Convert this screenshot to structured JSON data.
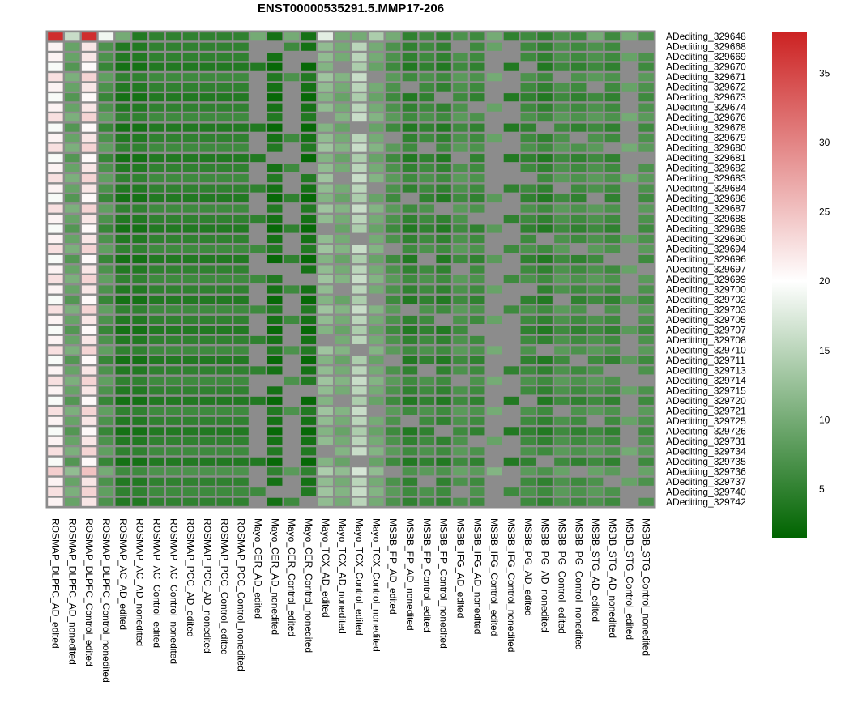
{
  "chart_data": {
    "type": "heatmap",
    "title": "ENST00000535291.5.MMP17-206",
    "columns": [
      "ROSMAP_DLPFC_AD_edited",
      "ROSMAP_DLPFC_AD_nonedited",
      "ROSMAP_DLPFC_Control_edited",
      "ROSMAP_DLPFC_Control_nonedited",
      "ROSMAP_AC_AD_edited",
      "ROSMAP_AC_AD_nonedited",
      "ROSMAP_AC_Control_edited",
      "ROSMAP_AC_Control_nonedited",
      "ROSMAP_PCC_AD_edited",
      "ROSMAP_PCC_AD_nonedited",
      "ROSMAP_PCC_Control_edited",
      "ROSMAP_PCC_Control_nonedited",
      "Mayo_CER_AD_edited",
      "Mayo_CER_AD_nonedited",
      "Mayo_CER_Control_edited",
      "Mayo_CER_Control_nonedited",
      "Mayo_TCX_AD_edited",
      "Mayo_TCX_AD_nonedited",
      "Mayo_TCX_Control_edited",
      "Mayo_TCX_Control_nonedited",
      "MSBB_FP_AD_edited",
      "MSBB_FP_AD_nonedited",
      "MSBB_FP_Control_edited",
      "MSBB_FP_Control_nonedited",
      "MSBB_IFG_AD_edited",
      "MSBB_IFG_AD_nonedited",
      "MSBB_IFG_Control_edited",
      "MSBB_IFG_Control_nonedited",
      "MSBB_PG_AD_edited",
      "MSBB_PG_AD_nonedited",
      "MSBB_PG_Control_edited",
      "MSBB_PG_Control_nonedited",
      "MSBB_STG_AD_edited",
      "MSBB_STG_AD_nonedited",
      "MSBB_STG_Control_edited",
      "MSBB_STG_Control_nonedited"
    ],
    "rows": [
      "ADediting_329648",
      "ADediting_329668",
      "ADediting_329669",
      "ADediting_329670",
      "ADediting_329671",
      "ADediting_329672",
      "ADediting_329673",
      "ADediting_329674",
      "ADediting_329676",
      "ADediting_329678",
      "ADediting_329679",
      "ADediting_329680",
      "ADediting_329681",
      "ADediting_329682",
      "ADediting_329683",
      "ADediting_329684",
      "ADediting_329686",
      "ADediting_329687",
      "ADediting_329688",
      "ADediting_329689",
      "ADediting_329690",
      "ADediting_329694",
      "ADediting_329696",
      "ADediting_329697",
      "ADediting_329699",
      "ADediting_329700",
      "ADediting_329702",
      "ADediting_329703",
      "ADediting_329705",
      "ADediting_329707",
      "ADediting_329708",
      "ADediting_329710",
      "ADediting_329711",
      "ADediting_329713",
      "ADediting_329714",
      "ADediting_329715",
      "ADediting_329720",
      "ADediting_329721",
      "ADediting_329725",
      "ADediting_329726",
      "ADediting_329731",
      "ADediting_329734",
      "ADediting_329735",
      "ADediting_329736",
      "ADediting_329737",
      "ADediting_329740",
      "ADediting_329742"
    ],
    "column_base_values": [
      21,
      9,
      22,
      7,
      4,
      4,
      5,
      5,
      5,
      5,
      5,
      5,
      5,
      3,
      6,
      3,
      12,
      10,
      15,
      10,
      7,
      5,
      6,
      5,
      7,
      6,
      9,
      5,
      6,
      5,
      7,
      6,
      7,
      6,
      9,
      7
    ],
    "row_offsets": [
      3,
      0,
      0,
      -1,
      1,
      0,
      -1,
      0,
      1,
      -1,
      0,
      1,
      -1,
      0,
      1,
      0,
      -1,
      1,
      0,
      -1,
      0,
      1,
      -1,
      0,
      1,
      0,
      -1,
      1,
      0,
      -1,
      0,
      1,
      -1,
      0,
      1,
      0,
      -1,
      1,
      0,
      -1,
      0,
      1,
      -1,
      2,
      0,
      1,
      0
    ],
    "first_row_values": [
      37,
      16,
      37,
      19,
      10,
      4,
      5,
      5,
      5,
      5,
      5,
      5,
      10,
      3,
      10,
      3,
      18,
      10,
      10,
      14,
      10,
      5,
      6,
      5,
      7,
      6,
      10,
      5,
      6,
      5,
      7,
      6,
      10,
      6,
      10,
      7
    ],
    "missing_columns": [
      12,
      14,
      26,
      27,
      34
    ],
    "color_scale": {
      "min": 1.5,
      "mid": 20,
      "max": 38,
      "low": "#006400",
      "mid_color": "#ffffff",
      "high": "#cc2222",
      "na": "#8c8c8c"
    },
    "legend_ticks": [
      5,
      10,
      15,
      20,
      25,
      30,
      35
    ],
    "border_color": "#8c8c8c"
  }
}
